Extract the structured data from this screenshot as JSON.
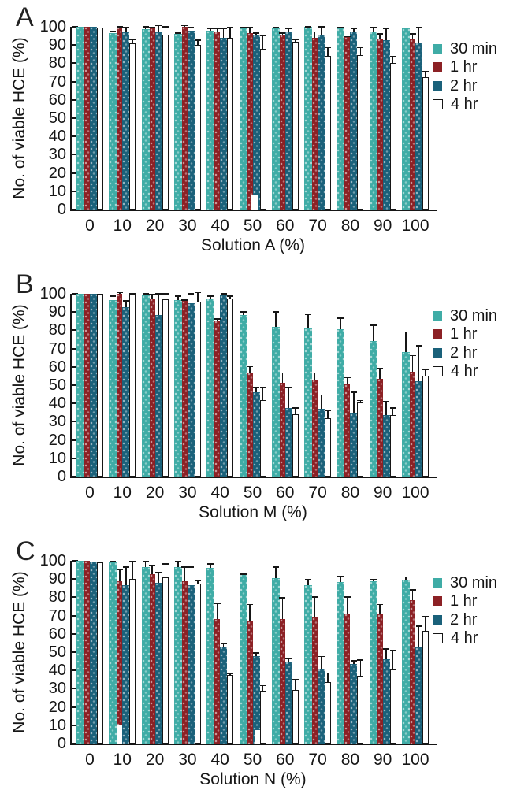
{
  "figure": {
    "y_axis_label": "No. of viable HCE (%)",
    "legend_labels": [
      "30 min",
      "1 hr",
      "2 hr",
      "4 hr"
    ],
    "axis_color": "#161616",
    "series_colors": {
      "30 min": "#3FACA6",
      "1 hr": "#8C2125",
      "2 hr": "#1A617A",
      "4 hr": "#FFFFFF"
    }
  },
  "chart_data": [
    {
      "type": "bar",
      "letter": "A",
      "title": "",
      "xlabel": "Solution A (%)",
      "ylabel": "No. of viable HCE (%)",
      "ylim": [
        0,
        100
      ],
      "yticks": [
        0,
        10,
        20,
        30,
        40,
        50,
        60,
        70,
        80,
        90,
        100
      ],
      "grid": false,
      "legend_position": "right",
      "categories": [
        "0",
        "10",
        "20",
        "30",
        "40",
        "50",
        "60",
        "70",
        "80",
        "90",
        "100"
      ],
      "series": [
        {
          "name": "30 min",
          "color": "#3FACA6",
          "values": [
            100,
            96.5,
            98.5,
            96,
            98,
            99,
            99,
            100,
            99,
            97.5,
            99
          ],
          "errors_upper": [
            0,
            1.5,
            2,
            1,
            1.5,
            1,
            1,
            0.5,
            1,
            2.5,
            0
          ]
        },
        {
          "name": "1 hr",
          "color": "#8C2125",
          "values": [
            100,
            100,
            99,
            100,
            97.5,
            96.5,
            95.5,
            94,
            94.5,
            93.5,
            93
          ],
          "errors_upper": [
            0,
            0.5,
            1,
            1,
            2,
            3.5,
            1.5,
            3.5,
            0.5,
            3,
            3.5
          ]
        },
        {
          "name": "2 hr",
          "color": "#1A617A",
          "values": [
            100,
            97,
            97,
            98,
            94,
            95.5,
            97.5,
            95.5,
            97.5,
            92.5,
            91.5
          ],
          "errors_upper": [
            0,
            3,
            4,
            2,
            5.5,
            1.5,
            2,
            5,
            2,
            7,
            8.5
          ]
        },
        {
          "name": "4 hr",
          "color": "#FFFFFF",
          "values": [
            99.5,
            91,
            95.5,
            90,
            94,
            88,
            92,
            84,
            84.5,
            80,
            72.5
          ],
          "errors_upper": [
            0,
            2.5,
            5,
            3,
            6,
            7.5,
            1.5,
            5,
            4.5,
            4,
            3.5
          ]
        }
      ],
      "white_patch_artifacts": [
        {
          "group": 5,
          "dx": 14,
          "w": 10,
          "h": 8
        }
      ]
    },
    {
      "type": "bar",
      "letter": "B",
      "title": "",
      "xlabel": "Solution M (%)",
      "ylabel": "No. of viable HCE (%)",
      "ylim": [
        0,
        100
      ],
      "yticks": [
        0,
        10,
        20,
        30,
        40,
        50,
        60,
        70,
        80,
        90,
        100
      ],
      "grid": false,
      "legend_position": "right",
      "categories": [
        "0",
        "10",
        "20",
        "30",
        "40",
        "50",
        "60",
        "70",
        "80",
        "90",
        "100"
      ],
      "series": [
        {
          "name": "30 min",
          "color": "#3FACA6",
          "values": [
            100,
            96.5,
            99,
            96.5,
            97.5,
            88.5,
            82,
            81,
            80.5,
            74,
            68
          ],
          "errors_upper": [
            0,
            2.5,
            1.5,
            2.5,
            1.5,
            2,
            8.5,
            8,
            6.5,
            9,
            11.5
          ]
        },
        {
          "name": "1 hr",
          "color": "#8C2125",
          "values": [
            100,
            100,
            97.5,
            96,
            85.5,
            57,
            51.5,
            53,
            50.5,
            53.5,
            57.5
          ],
          "errors_upper": [
            0,
            1,
            2.5,
            1,
            1,
            3.5,
            5.5,
            4,
            4,
            6,
            9
          ]
        },
        {
          "name": "2 hr",
          "color": "#1A617A",
          "values": [
            100,
            92.5,
            88.5,
            95,
            99,
            46,
            37.5,
            37,
            34.5,
            33.5,
            52
          ],
          "errors_upper": [
            0,
            4,
            12,
            5.5,
            1.5,
            3,
            11.5,
            8,
            12,
            8,
            20
          ]
        },
        {
          "name": "4 hr",
          "color": "#FFFFFF",
          "values": [
            100,
            99.5,
            97,
            95.5,
            97.5,
            42,
            34,
            32,
            40.5,
            33.5,
            55
          ],
          "errors_upper": [
            0,
            1,
            3.5,
            5.5,
            1.5,
            7,
            4,
            4.5,
            1.5,
            4.5,
            4
          ]
        }
      ],
      "white_patch_artifacts": []
    },
    {
      "type": "bar",
      "letter": "C",
      "title": "",
      "xlabel": "Solution N (%)",
      "ylabel": "No. of viable HCE (%)",
      "ylim": [
        0,
        100
      ],
      "yticks": [
        0,
        10,
        20,
        30,
        40,
        50,
        60,
        70,
        80,
        90,
        100
      ],
      "grid": false,
      "legend_position": "right",
      "categories": [
        "0",
        "10",
        "20",
        "30",
        "40",
        "50",
        "60",
        "70",
        "80",
        "90",
        "100"
      ],
      "series": [
        {
          "name": "30 min",
          "color": "#3FACA6",
          "values": [
            100,
            99,
            96.5,
            96.5,
            96,
            92.5,
            90.5,
            86.5,
            88.5,
            89,
            89.5
          ],
          "errors_upper": [
            0,
            1,
            3.5,
            3.5,
            2.5,
            0.5,
            6.5,
            3.5,
            3.5,
            1,
            2
          ]
        },
        {
          "name": "1 hr",
          "color": "#8C2125",
          "values": [
            100,
            89,
            92.5,
            89,
            68,
            67,
            68,
            69,
            71,
            70.5,
            78.5
          ],
          "errors_upper": [
            0,
            6.5,
            5.5,
            8,
            9,
            9.5,
            12,
            11.5,
            9.5,
            6,
            6
          ]
        },
        {
          "name": "2 hr",
          "color": "#1A617A",
          "values": [
            99.5,
            86.5,
            88,
            86.5,
            53,
            48,
            45,
            41,
            43.5,
            46,
            52.5
          ],
          "errors_upper": [
            0,
            10.5,
            6,
            10.5,
            2,
            2,
            2,
            7,
            2,
            6,
            12
          ]
        },
        {
          "name": "4 hr",
          "color": "#FFFFFF",
          "values": [
            99,
            90,
            91,
            87.5,
            37.5,
            29,
            29.5,
            33.5,
            37,
            40.5,
            61.5
          ],
          "errors_upper": [
            0,
            10,
            7.5,
            2,
            1,
            3,
            6,
            5.5,
            9,
            11,
            8.5
          ]
        }
      ],
      "white_patch_artifacts": [
        {
          "group": 1,
          "dx": 10,
          "w": 7,
          "h": 10
        },
        {
          "group": 5,
          "dx": 19,
          "w": 7,
          "h": 7.5
        }
      ]
    }
  ]
}
